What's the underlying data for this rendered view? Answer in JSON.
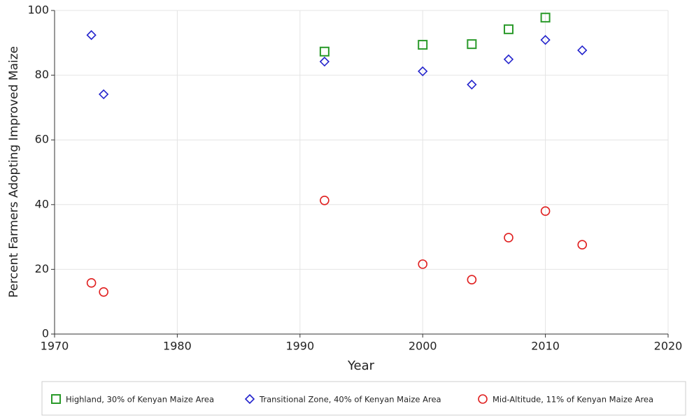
{
  "chart_data": {
    "type": "scatter",
    "xlabel": "Year",
    "ylabel": "Percent Farmers Adopting Improved Maize",
    "xlim": [
      1970,
      2020
    ],
    "xticks": [
      1970,
      1980,
      1990,
      2000,
      2010,
      2020
    ],
    "ylim": [
      0,
      100
    ],
    "yticks": [
      0,
      20,
      40,
      60,
      80,
      100
    ],
    "grid": true,
    "legend": "bottom",
    "series": [
      {
        "name": "Highland, 30% of Kenyan Maize Area",
        "color": "#2a9a2a",
        "marker": "square",
        "x": [
          1992,
          2000,
          2004,
          2007,
          2010
        ],
        "values": [
          87.3,
          89.4,
          89.6,
          94.2,
          97.8
        ]
      },
      {
        "name": "Transitional Zone, 40% of Kenyan Maize Area",
        "color": "#2222cc",
        "marker": "diamond",
        "x": [
          1973,
          1974,
          1992,
          2000,
          2004,
          2007,
          2010,
          2013
        ],
        "values": [
          92.4,
          74.1,
          84.2,
          81.2,
          77.1,
          84.9,
          90.9,
          87.7
        ]
      },
      {
        "name": "Mid-Altitude, 11% of Kenyan Maize Area",
        "color": "#e02020",
        "marker": "circle",
        "x": [
          1973,
          1974,
          1992,
          2000,
          2004,
          2007,
          2010,
          2013
        ],
        "values": [
          15.8,
          13,
          41.3,
          21.6,
          16.8,
          29.8,
          38,
          27.6
        ]
      }
    ]
  }
}
